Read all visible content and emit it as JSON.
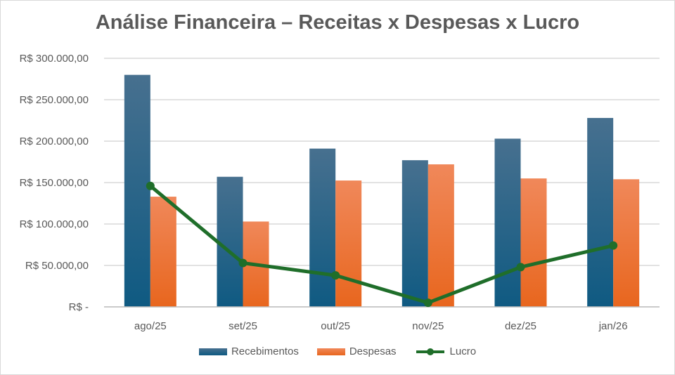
{
  "chart_data": {
    "type": "bar+line",
    "title": "Análise Financeira – Receitas x Despesas x Lucro",
    "categories": [
      "ago/25",
      "set/25",
      "out/25",
      "nov/25",
      "dez/25",
      "jan/26"
    ],
    "series": [
      {
        "name": "Recebimentos",
        "type": "bar",
        "color": "#1f5f86",
        "values": [
          280000,
          157000,
          191000,
          177000,
          203000,
          228000
        ]
      },
      {
        "name": "Despesas",
        "type": "bar",
        "color": "#ef7a3a",
        "values": [
          133000,
          103000,
          152500,
          172000,
          155000,
          154000
        ]
      },
      {
        "name": "Lucro",
        "type": "line",
        "color": "#1f6e2a",
        "values": [
          146000,
          53000,
          38000,
          5000,
          48000,
          74000
        ]
      }
    ],
    "ylim": [
      0,
      300000
    ],
    "yticks": [
      0,
      50000,
      100000,
      150000,
      200000,
      250000,
      300000
    ],
    "ytick_labels": [
      "R$ -",
      "R$ 50.000,00",
      "R$ 100.000,00",
      "R$ 150.000,00",
      "R$ 200.000,00",
      "R$ 250.000,00",
      "R$ 300.000,00"
    ],
    "grid": true,
    "legend": "bottom"
  }
}
